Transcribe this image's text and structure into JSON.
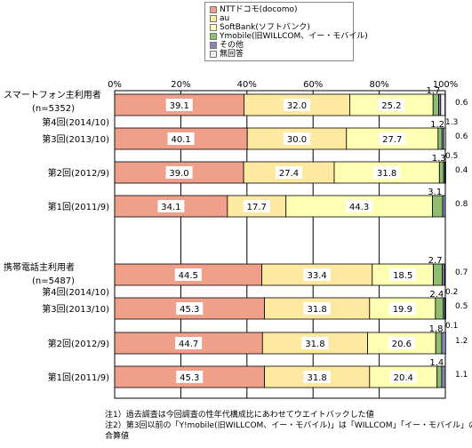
{
  "chart_data": {
    "type": "bar",
    "stacked": true,
    "horizontal": true,
    "xlim": [
      0,
      100
    ],
    "x_ticks": [
      "0%",
      "20%",
      "40%",
      "60%",
      "80%",
      "100%"
    ],
    "legend_position": "top",
    "groups": [
      {
        "label_lines": [
          "スマートフォン主利用者",
          "(n=5352)"
        ]
      },
      {
        "label_lines": [
          "携帯電話主利用者",
          "(n=5487)"
        ]
      }
    ],
    "series": [
      {
        "name": "NTTドコモ(docomo)",
        "color": "#f0a08a"
      },
      {
        "name": "au",
        "color": "#fde9a0"
      },
      {
        "name": "SoftBank(ソフトバンク)",
        "color": "#ffffb4"
      },
      {
        "name": "Ymobile(旧WILLCOM、イー・モバイル)",
        "color": "#8fbf6e"
      },
      {
        "name": "その他",
        "color": "#8585b8"
      },
      {
        "name": "無回答",
        "color": "#eeeeee"
      }
    ],
    "rows": [
      {
        "label": "第4回(2014/10)",
        "values": [
          39.1,
          32.0,
          25.2,
          1.7,
          0.6,
          1.3
        ],
        "label_texts": [
          "39.1",
          "32.0",
          "25.2",
          "1.7",
          "0.6",
          "1.3"
        ]
      },
      {
        "label": "第3回(2013/10)",
        "values": [
          40.1,
          30.0,
          27.7,
          1.2,
          0.6,
          0.5
        ],
        "label_texts": [
          "40.1",
          "30.0",
          "27.7",
          "1.2",
          "0.6",
          "0.5"
        ]
      },
      {
        "label": "第2回(2012/9)",
        "values": [
          39.0,
          27.4,
          31.8,
          1.3,
          0.4,
          0.1
        ],
        "label_texts": [
          "39.0",
          "27.4",
          "31.8",
          "1.3",
          "0.4",
          ""
        ]
      },
      {
        "label": "第1回(2011/9)",
        "values": [
          34.1,
          17.7,
          44.3,
          3.1,
          0.8,
          0.0
        ],
        "label_texts": [
          "34.1",
          "17.7",
          "44.3",
          "3.1",
          "0.8",
          ""
        ]
      },
      {
        "label": "第4回(2014/10)",
        "values": [
          44.5,
          33.4,
          18.5,
          2.7,
          0.7,
          0.2
        ],
        "label_texts": [
          "44.5",
          "33.4",
          "18.5",
          "2.7",
          "0.7",
          "0.2"
        ]
      },
      {
        "label": "第3回(2013/10)",
        "values": [
          45.3,
          31.8,
          19.9,
          2.4,
          0.5,
          0.1
        ],
        "label_texts": [
          "45.3",
          "31.8",
          "19.9",
          "2.4",
          "0.5",
          "0.1"
        ]
      },
      {
        "label": "第2回(2012/9)",
        "values": [
          44.7,
          31.8,
          20.6,
          1.8,
          1.2,
          0.0
        ],
        "label_texts": [
          "44.7",
          "31.8",
          "20.6",
          "1.8",
          "1.2",
          ""
        ]
      },
      {
        "label": "第1回(2011/9)",
        "values": [
          45.3,
          31.8,
          20.4,
          1.4,
          1.1,
          0.0
        ],
        "label_texts": [
          "45.3",
          "31.8",
          "20.4",
          "1.4",
          "1.1",
          ""
        ]
      }
    ]
  },
  "notes": [
    "注1）過去調査は今回調査の性年代構成比にあわせてウエイトバックした値",
    "注2）第3回以前の「Y!mobile(旧WILLCOM、イー・モバイル)」は「WILLCOM」「イー・モバイル」の",
    "合算値"
  ]
}
